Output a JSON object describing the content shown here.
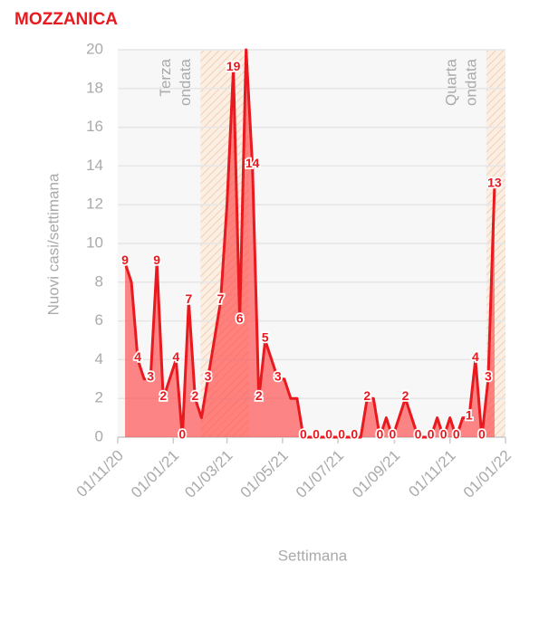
{
  "chart_data": {
    "type": "area",
    "title": "MOZZANICA",
    "y_label": "Nuovi casi/settimana",
    "x_label": "Settimana",
    "color": "#e8191f",
    "grid": true,
    "x": [
      "2020-11-09",
      "2020-11-16",
      "2020-11-23",
      "2020-11-30",
      "2020-12-07",
      "2020-12-14",
      "2020-12-21",
      "2020-12-28",
      "2021-01-04",
      "2021-01-11",
      "2021-01-18",
      "2021-01-25",
      "2021-02-01",
      "2021-02-08",
      "2021-02-15",
      "2021-02-22",
      "2021-03-01",
      "2021-03-08",
      "2021-03-15",
      "2021-03-22",
      "2021-03-29",
      "2021-04-05",
      "2021-04-12",
      "2021-04-19",
      "2021-04-26",
      "2021-05-03",
      "2021-05-10",
      "2021-05-17",
      "2021-05-24",
      "2021-05-31",
      "2021-06-07",
      "2021-06-14",
      "2021-06-21",
      "2021-06-28",
      "2021-07-05",
      "2021-07-12",
      "2021-07-19",
      "2021-07-26",
      "2021-08-02",
      "2021-08-09",
      "2021-08-16",
      "2021-08-23",
      "2021-08-30",
      "2021-09-06",
      "2021-09-13",
      "2021-09-20",
      "2021-09-27",
      "2021-10-04",
      "2021-10-11",
      "2021-10-18",
      "2021-10-25",
      "2021-11-01",
      "2021-11-08",
      "2021-11-15",
      "2021-11-22",
      "2021-11-29",
      "2021-12-06",
      "2021-12-13",
      "2021-12-20"
    ],
    "values": [
      9,
      8,
      4,
      3,
      3,
      9,
      2,
      3,
      4,
      0,
      7,
      2,
      1,
      3,
      5,
      7,
      12,
      19,
      6,
      20,
      14,
      2,
      5,
      4,
      3,
      3,
      2,
      2,
      0,
      0,
      0,
      0,
      0,
      0,
      0,
      0,
      0,
      0,
      2,
      2,
      0,
      1,
      0,
      1,
      2,
      1,
      0,
      0,
      0,
      1,
      0,
      1,
      0,
      1,
      1,
      4,
      0,
      3,
      13
    ],
    "value_labels": [
      "9",
      null,
      "4",
      null,
      "3",
      "9",
      "2",
      null,
      "4",
      "0",
      "7",
      "2",
      null,
      "3",
      null,
      "7",
      null,
      "19",
      "6",
      null,
      "14",
      "2",
      "5",
      null,
      "3",
      null,
      null,
      null,
      "0",
      null,
      "0",
      null,
      "0",
      null,
      "0",
      null,
      "0",
      null,
      "2",
      null,
      "0",
      null,
      "0",
      null,
      "2",
      null,
      "0",
      null,
      "0",
      null,
      "0",
      null,
      "0",
      null,
      "1",
      "4",
      "0",
      "3",
      "13"
    ],
    "xlim": [
      "2020-11-01",
      "2022-01-01"
    ],
    "xticks": [
      {
        "value": "2020-11-01",
        "label": "01/11/20"
      },
      {
        "value": "2021-01-01",
        "label": "01/01/21"
      },
      {
        "value": "2021-03-01",
        "label": "01/03/21"
      },
      {
        "value": "2021-05-01",
        "label": "01/05/21"
      },
      {
        "value": "2021-07-01",
        "label": "01/07/21"
      },
      {
        "value": "2021-09-01",
        "label": "01/09/21"
      },
      {
        "value": "2021-11-01",
        "label": "01/11/21"
      },
      {
        "value": "2022-01-01",
        "label": "01/01/22"
      }
    ],
    "ylim": [
      0,
      20
    ],
    "yticks": [
      0,
      2,
      4,
      6,
      8,
      10,
      12,
      14,
      16,
      18,
      20
    ],
    "periods": [
      {
        "lines": [
          "Terza",
          "ondata"
        ],
        "start": "2021-01-31",
        "end": "2021-03-25"
      },
      {
        "lines": [
          "Quarta",
          "ondata"
        ],
        "start": "2021-12-11",
        "end": "2022-01-01"
      }
    ]
  }
}
